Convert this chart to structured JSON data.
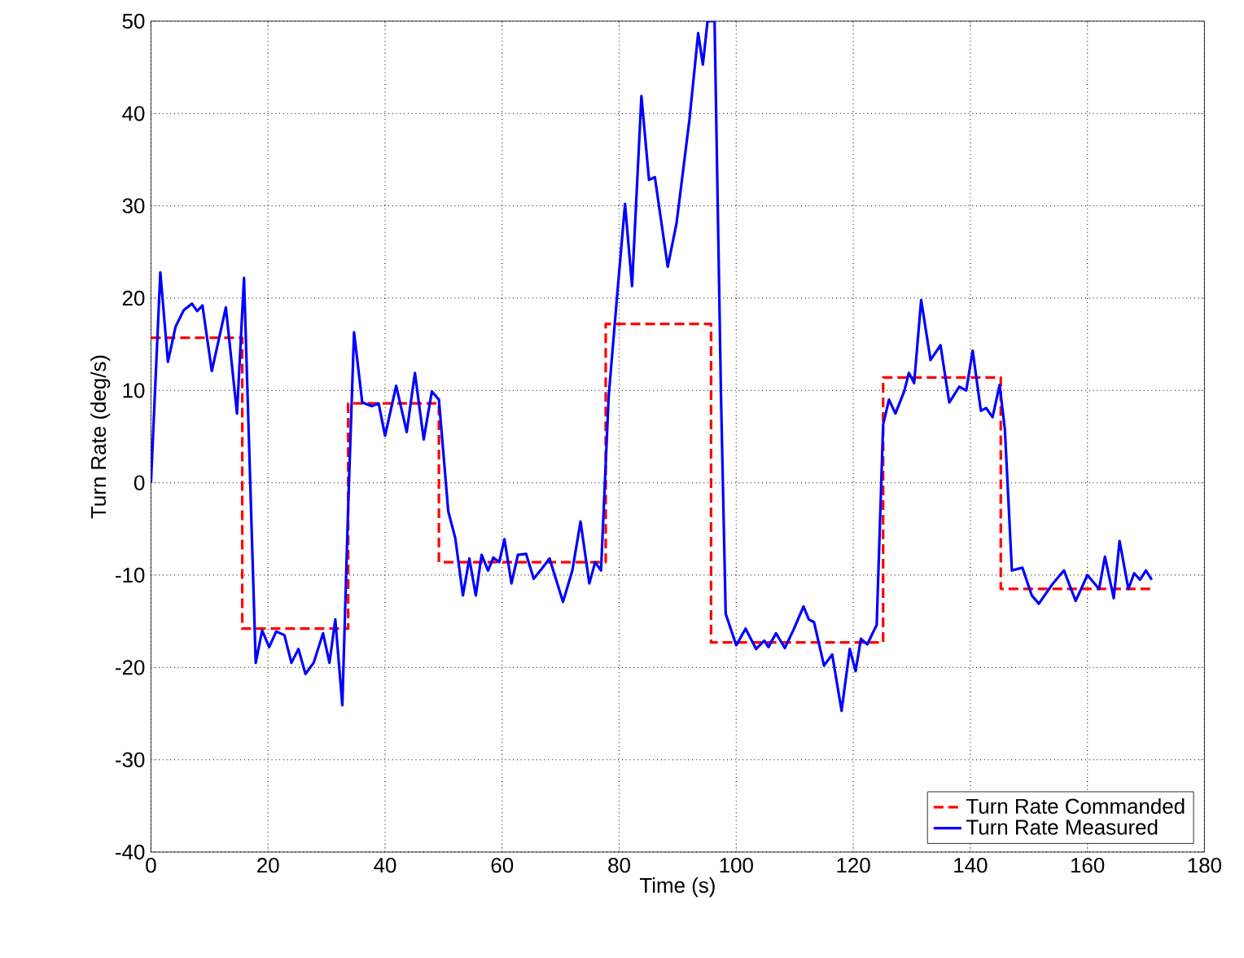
{
  "chart_data": {
    "type": "line",
    "xlabel": "Time (s)",
    "ylabel": "Turn Rate (deg/s)",
    "xlim": [
      0,
      180
    ],
    "ylim": [
      -40,
      50
    ],
    "xticks": [
      0,
      20,
      40,
      60,
      80,
      100,
      120,
      140,
      160,
      180
    ],
    "yticks": [
      -40,
      -30,
      -20,
      -10,
      0,
      10,
      20,
      30,
      40,
      50
    ],
    "grid": true,
    "legend": "bottom right",
    "marker": "none",
    "series": [
      {
        "name": "Turn Rate Commanded",
        "color": "#ff0000",
        "line_style": "dashed",
        "x": [
          0,
          15.6,
          15.6,
          33.7,
          33.7,
          49.2,
          49.2,
          77.7,
          77.7,
          95.7,
          95.7,
          125.1,
          125.1,
          145.2,
          145.2,
          171
        ],
        "values": [
          15.7,
          15.7,
          -15.8,
          -15.8,
          8.6,
          8.6,
          -8.6,
          -8.6,
          17.2,
          17.2,
          -17.3,
          -17.3,
          11.4,
          11.4,
          -11.5,
          -11.5
        ]
      },
      {
        "name": "Turn Rate Measured",
        "color": "#0000ff",
        "line_style": "solid",
        "x": [
          0,
          1.6,
          2.9,
          4.2,
          5.6,
          7.0,
          7.9,
          8.8,
          10.4,
          12.8,
          14.7,
          15.9,
          17.9,
          19.0,
          20.2,
          21.4,
          22.8,
          24.0,
          25.2,
          26.4,
          27.8,
          29.4,
          30.5,
          31.5,
          32.7,
          33.7,
          34.7,
          36.1,
          37.7,
          38.9,
          40.0,
          41.9,
          43.7,
          45.1,
          46.6,
          48.0,
          49.2,
          50.8,
          52.0,
          53.3,
          54.4,
          55.5,
          56.5,
          57.6,
          58.5,
          59.5,
          60.4,
          61.6,
          62.7,
          64.1,
          65.4,
          66.9,
          68.1,
          70.4,
          72.0,
          73.4,
          74.9,
          75.9,
          76.9,
          78.2,
          79.6,
          81.0,
          82.2,
          83.8,
          85.1,
          86.1,
          88.3,
          89.8,
          92.0,
          93.5,
          94.3,
          95.1,
          96.3,
          97.4,
          98.2,
          100.0,
          101.6,
          103.4,
          104.8,
          105.5,
          106.8,
          108.3,
          109.8,
          111.5,
          112.4,
          113.3,
          115.0,
          116.4,
          118.0,
          119.4,
          120.4,
          121.3,
          122.4,
          123.3,
          124.0,
          125.1,
          126.1,
          127.2,
          128.7,
          129.5,
          130.4,
          131.6,
          133.2,
          134.9,
          136.4,
          138.1,
          139.3,
          140.4,
          141.8,
          142.7,
          143.8,
          145.0,
          145.9,
          147.1,
          148.9,
          150.5,
          151.7,
          154,
          156,
          158,
          160,
          162,
          163,
          164.5,
          165.5,
          167,
          168,
          169,
          170,
          171
        ],
        "values": [
          0,
          22.8,
          13.1,
          16.9,
          18.7,
          19.4,
          18.6,
          19.2,
          12.1,
          19.0,
          7.5,
          22.2,
          -19.5,
          -16.0,
          -17.8,
          -16.1,
          -16.5,
          -19.5,
          -18.0,
          -20.7,
          -19.5,
          -16.3,
          -19.5,
          -14.8,
          -24.1,
          -2.5,
          16.3,
          8.7,
          8.3,
          8.6,
          5.1,
          10.5,
          5.5,
          11.9,
          4.7,
          9.9,
          9.0,
          -3.1,
          -6.0,
          -12.2,
          -8.2,
          -12.2,
          -7.8,
          -9.5,
          -8.1,
          -8.6,
          -6.1,
          -10.9,
          -7.8,
          -7.7,
          -10.4,
          -9.2,
          -8.2,
          -12.9,
          -9.5,
          -4.2,
          -10.9,
          -8.6,
          -9.5,
          9.3,
          19.9,
          30.2,
          21.3,
          41.9,
          32.8,
          33.1,
          23.4,
          28.1,
          39.3,
          48.7,
          45.3,
          50,
          50,
          9.3,
          -14.2,
          -17.6,
          -15.8,
          -18.0,
          -17.1,
          -17.8,
          -16.3,
          -17.9,
          -15.9,
          -13.4,
          -14.8,
          -15.1,
          -19.8,
          -18.6,
          -24.7,
          -18.0,
          -20.4,
          -16.9,
          -17.5,
          -16.3,
          -15.4,
          6.3,
          9.0,
          7.5,
          9.9,
          11.9,
          10.8,
          19.8,
          13.3,
          14.9,
          8.7,
          10.4,
          10.0,
          14.3,
          7.8,
          8.1,
          7.1,
          10.6,
          5.8,
          -9.5,
          -9.2,
          -12.2,
          -13.1,
          -11,
          -9.5,
          -12.8,
          -10,
          -11.5,
          -8,
          -12.5,
          -6.3,
          -11.5,
          -9.8,
          -10.5,
          -9.5,
          -10.5
        ]
      }
    ]
  }
}
